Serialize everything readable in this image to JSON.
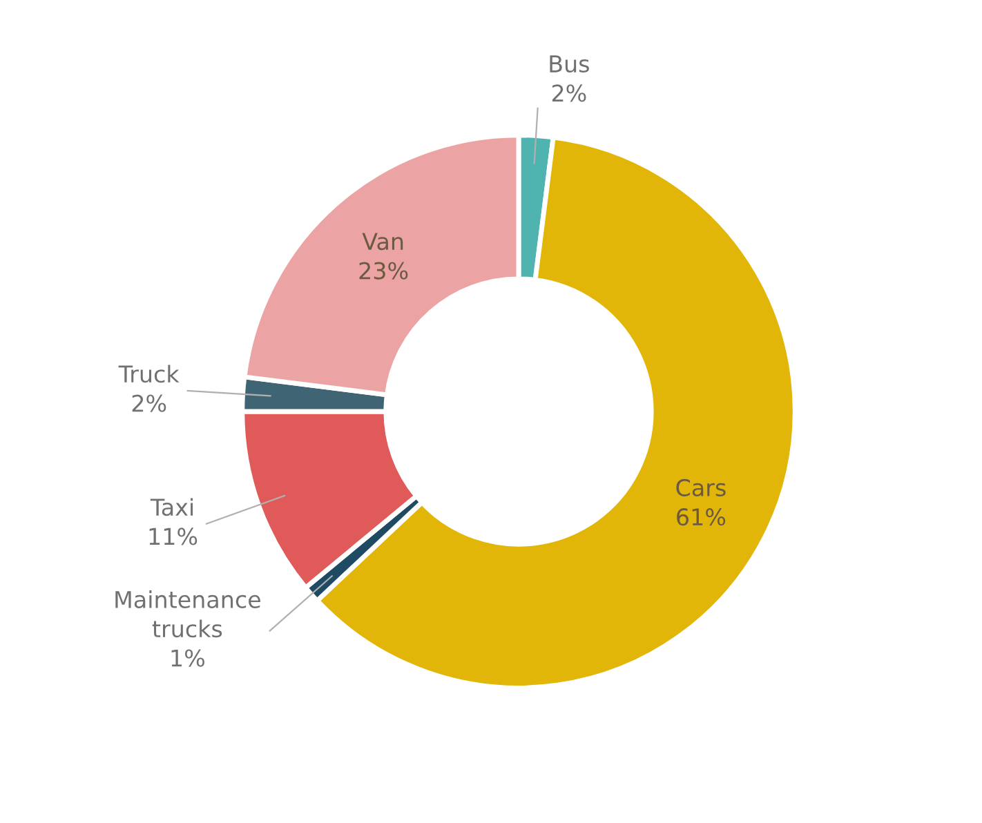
{
  "chart_data": {
    "type": "donut",
    "categories": [
      "Bus",
      "Cars",
      "Maintenance\ntrucks",
      "Taxi",
      "Truck",
      "Van"
    ],
    "values": [
      2,
      61,
      1,
      11,
      2,
      23
    ],
    "colors": [
      "#4fb3b0",
      "#e2b509",
      "#1f4a63",
      "#e05a5a",
      "#3f6574",
      "#eca3a3"
    ],
    "value_labels": [
      "2%",
      "61%",
      "1%",
      "11%",
      "2%",
      "23%"
    ],
    "legend": false
  }
}
